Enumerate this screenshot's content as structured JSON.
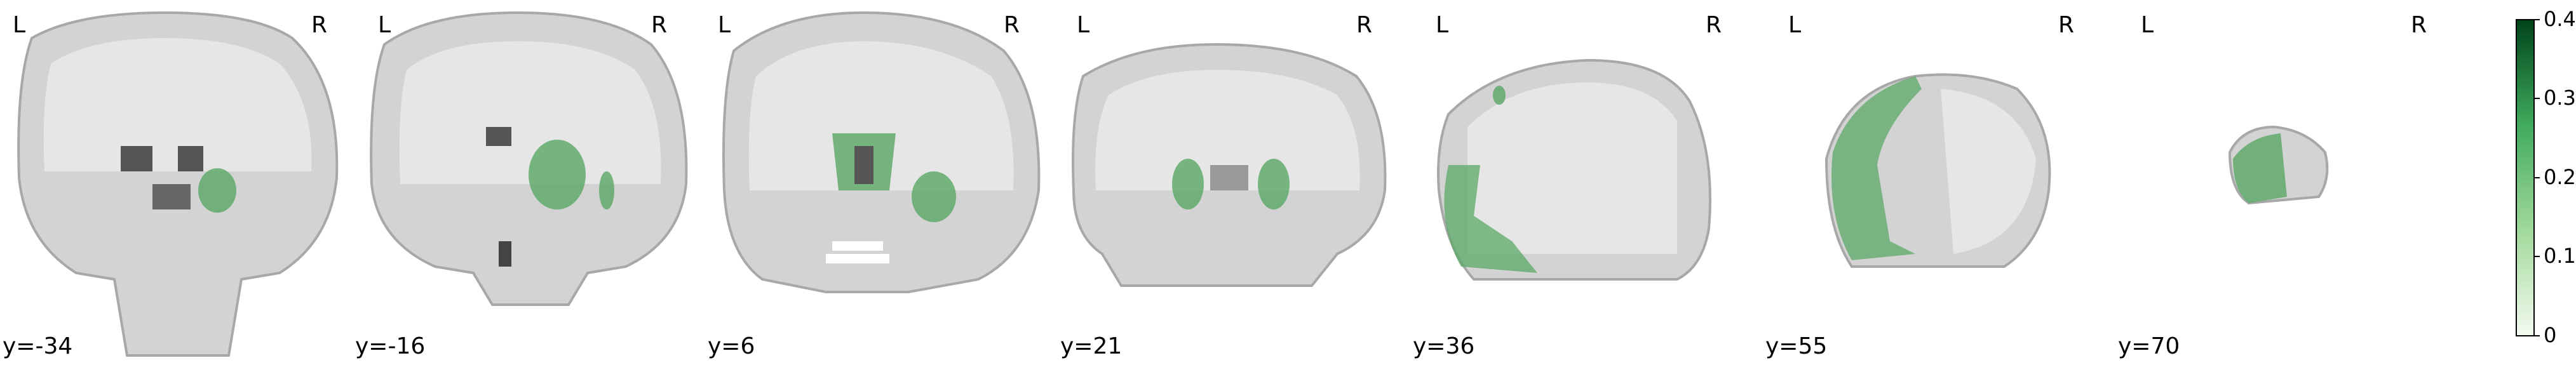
{
  "figure": {
    "orientation_left": "L",
    "orientation_right": "R",
    "overlay_color": "#5aa865"
  },
  "slices": [
    {
      "coord": "y=-34"
    },
    {
      "coord": "y=-16"
    },
    {
      "coord": "y=6"
    },
    {
      "coord": "y=21"
    },
    {
      "coord": "y=36"
    },
    {
      "coord": "y=55"
    },
    {
      "coord": "y=70"
    }
  ],
  "colorbar": {
    "ticks": [
      "0.4",
      "0.3",
      "0.2",
      "0.1",
      "0"
    ],
    "min": 0,
    "max": 0.4,
    "color_low": "#f3faf0",
    "color_high": "#00441b"
  }
}
